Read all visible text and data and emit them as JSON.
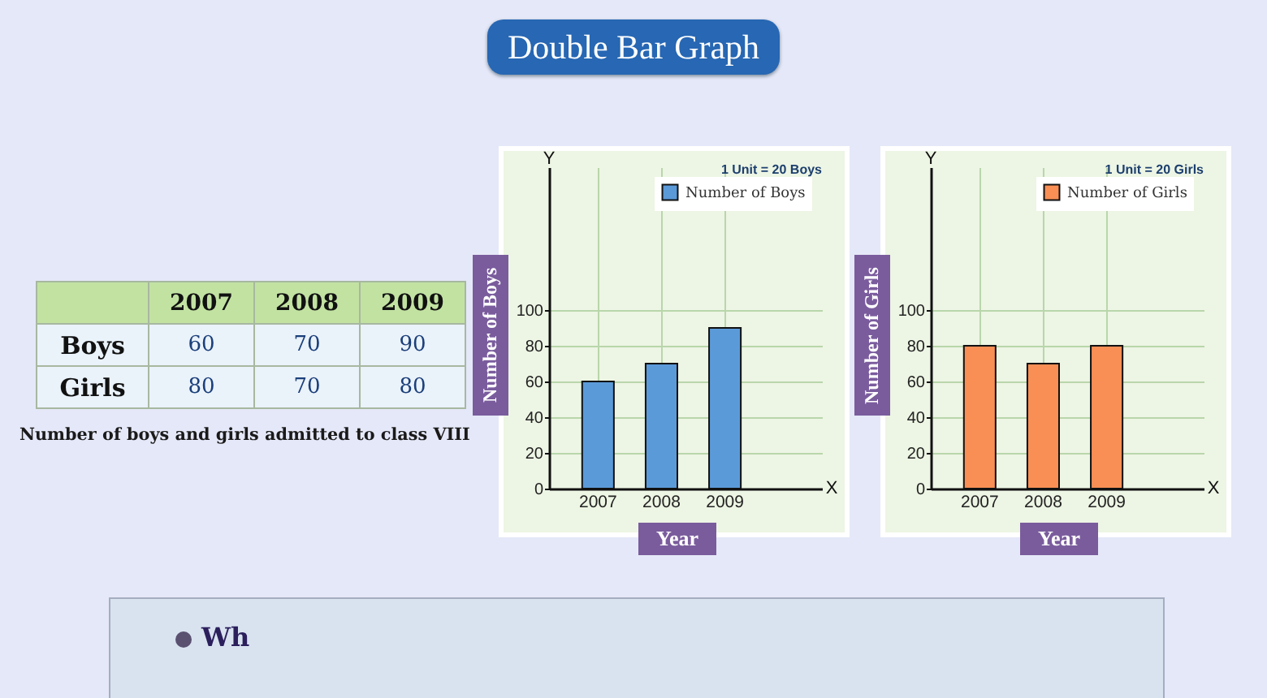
{
  "chart_data": [
    {
      "type": "other",
      "categories": [
        "2007",
        "2008",
        "2009"
      ],
      "series": [
        {
          "name": "Boys",
          "values": [
            60,
            70,
            90
          ]
        },
        {
          "name": "Girls",
          "values": [
            80,
            70,
            80
          ]
        }
      ],
      "data_labels": true,
      "annotations": [
        "Number of boys and girls admitted to class VIII",
        "Wh"
      ]
    },
    {
      "type": "bar",
      "title": "Double Bar Graph",
      "categories": [
        "2007",
        "2008",
        "2009"
      ],
      "series": [
        {
          "name": "Number of Boys",
          "color": "#5b9ad9",
          "values": [
            60,
            70,
            90
          ]
        }
      ],
      "xlabel": "Year",
      "ylabel": "Number of Boys",
      "ylim": [
        0,
        180
      ],
      "yticks": [
        0,
        20,
        40,
        60,
        80,
        100
      ],
      "grid": true,
      "legend": "top right",
      "annotations": [
        "1 Unit = 20 Boys",
        "Y",
        "X"
      ]
    },
    {
      "type": "bar",
      "categories": [
        "2007",
        "2008",
        "2009"
      ],
      "series": [
        {
          "name": "Number of Girls",
          "color": "#f98f55",
          "values": [
            80,
            70,
            80
          ]
        }
      ],
      "xlabel": "Year",
      "ylabel": "Number of Girls",
      "ylim": [
        0,
        180
      ],
      "yticks": [
        0,
        20,
        40,
        60,
        80,
        100
      ],
      "grid": true,
      "legend": "top right",
      "annotations": [
        "1 Unit = 20 Girls",
        "Y",
        "X"
      ]
    }
  ]
}
